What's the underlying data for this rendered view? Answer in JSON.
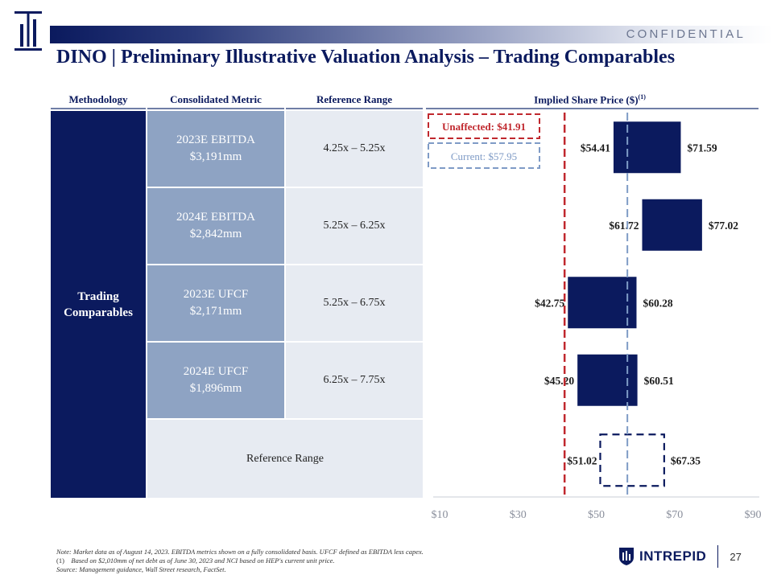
{
  "header": {
    "confidential": "CONFIDENTIAL",
    "title": "DINO | Preliminary Illustrative Valuation Analysis – Trading Comparables"
  },
  "table": {
    "columns": {
      "methodology": "Methodology",
      "metric": "Consolidated Metric",
      "range": "Reference Range",
      "implied": "Implied Share Price ($)",
      "implied_sup": "(1)"
    },
    "methodology_line1": "Trading",
    "methodology_line2": "Comparables",
    "rows": [
      {
        "metric": "2023E EBITDA",
        "value": "$3,191mm",
        "range": "4.25x – 5.25x"
      },
      {
        "metric": "2024E EBITDA",
        "value": "$2,842mm",
        "range": "5.25x – 6.25x"
      },
      {
        "metric": "2023E UFCF",
        "value": "$2,171mm",
        "range": "5.25x – 6.75x"
      },
      {
        "metric": "2024E UFCF",
        "value": "$1,896mm",
        "range": "6.25x – 7.75x"
      }
    ],
    "reference_range_label": "Reference Range"
  },
  "chart_data": {
    "type": "bar",
    "orientation": "horizontal-floating",
    "categories": [
      "2023E EBITDA",
      "2024E EBITDA",
      "2023E UFCF",
      "2024E UFCF",
      "Reference Range"
    ],
    "series": [
      {
        "low": 54.41,
        "high": 71.59,
        "low_label": "$54.41",
        "high_label": "$71.59"
      },
      {
        "low": 61.72,
        "high": 77.02,
        "low_label": "$61.72",
        "high_label": "$77.02"
      },
      {
        "low": 42.75,
        "high": 60.28,
        "low_label": "$42.75",
        "high_label": "$60.28"
      },
      {
        "low": 45.2,
        "high": 60.51,
        "low_label": "$45.20",
        "high_label": "$60.51"
      },
      {
        "low": 51.02,
        "high": 67.35,
        "low_label": "$51.02",
        "high_label": "$67.35",
        "dashed": true
      }
    ],
    "xlim": [
      10,
      90
    ],
    "xticks": [
      {
        "value": 10,
        "label": "$10"
      },
      {
        "value": 30,
        "label": "$30"
      },
      {
        "value": 50,
        "label": "$50"
      },
      {
        "value": 70,
        "label": "$70"
      },
      {
        "value": 90,
        "label": "$90"
      }
    ],
    "reference_lines": [
      {
        "value": 41.91,
        "label": "Unaffected: $41.91",
        "color": "#c0282e"
      },
      {
        "value": 57.95,
        "label": "Current: $57.95",
        "color": "#7f9bc6"
      }
    ],
    "bar_color": "#0b1a5e",
    "legend": "top-left"
  },
  "footnotes": {
    "note": "Note: Market data as of August 14, 2023. EBITDA metrics shown on a fully consolidated basis. UFCF defined as EBITDA less capex.",
    "fn1_marker": "(1)",
    "fn1": "Based on $2,010mm of net debt as of June 30, 2023 and NCI based on HEP's current unit price.",
    "source": "Source: Management guidance, Wall Street research, FactSet."
  },
  "footer": {
    "brand": "INTREPID",
    "page": "27"
  },
  "colors": {
    "navy": "#0b1a5e",
    "metric_fill": "#8ea3c3",
    "range_fill": "#e7ebf2",
    "unaffected": "#c0282e",
    "current": "#7f9bc6"
  }
}
